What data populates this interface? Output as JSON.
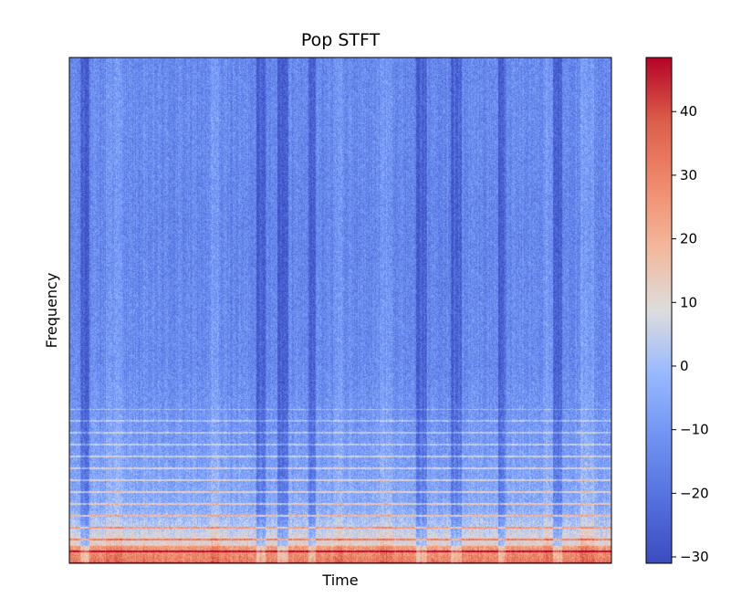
{
  "chart_data": {
    "type": "heatmap",
    "title": "Pop STFT",
    "xlabel": "Time",
    "ylabel": "Frequency",
    "x_ticks_visible": false,
    "y_ticks_visible": false,
    "colormap": "coolwarm",
    "colorbar": {
      "range": [
        -31,
        48.5
      ],
      "ticks": [
        -30,
        -20,
        -10,
        0,
        10,
        20,
        30,
        40
      ],
      "tick_labels": [
        "−30",
        "−20",
        "−10",
        "0",
        "10",
        "20",
        "30",
        "40"
      ],
      "low_color": "#3b4cc0",
      "mid_color": "#dddddd",
      "high_color": "#b40426"
    },
    "description_of_content": "STFT magnitude in dB; values mostly between -25 and 5 dB, with warm (15-35 dB) energy concentrated in the lowest frequency rows and along horizontal harmonic lines in the lower third; dark vertical bands of low energy appear at several time positions."
  }
}
